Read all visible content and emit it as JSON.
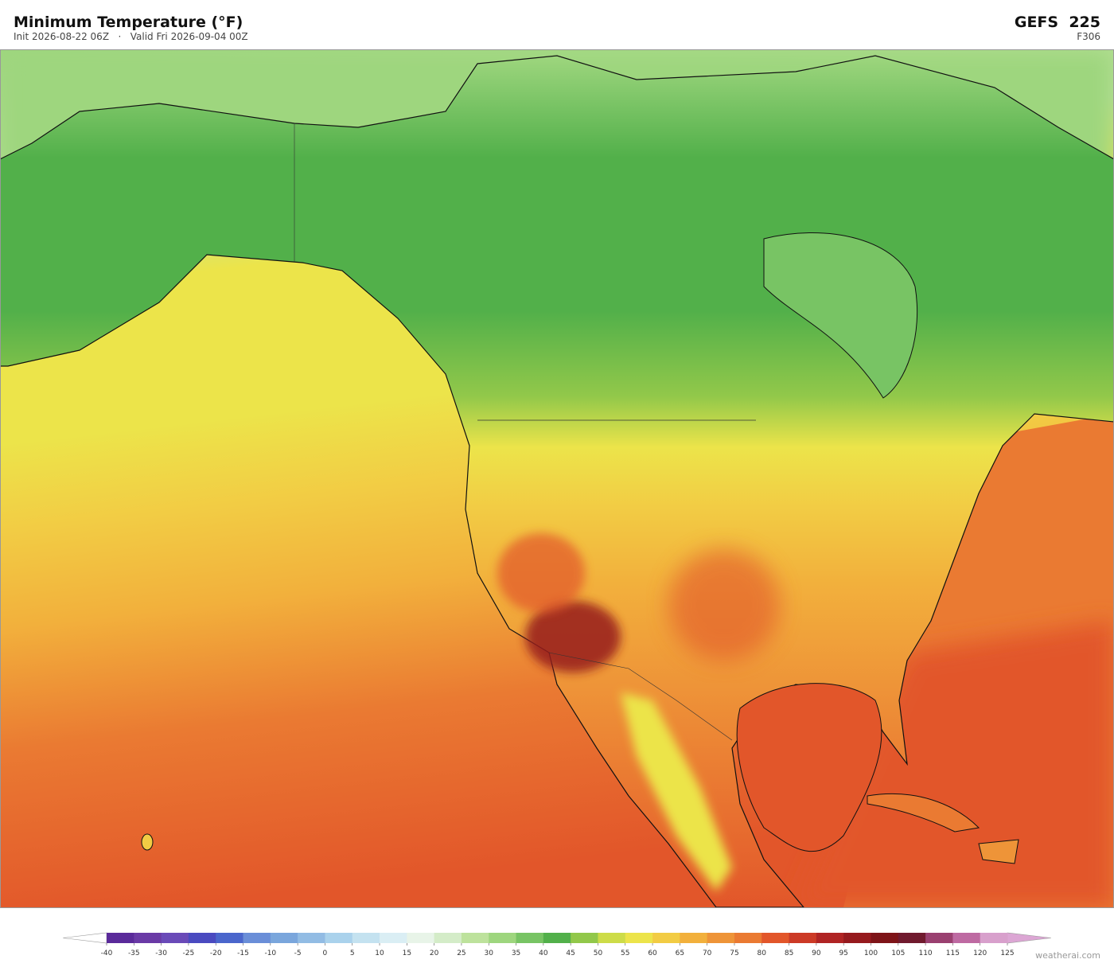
{
  "header": {
    "title": "Minimum Temperature  (°F)",
    "subtitle": "Init 2026-08-22 06Z   ·   Valid Fri 2026-09-04 00Z",
    "model": "GEFS  225",
    "forecast_hour": "F306"
  },
  "colorbar": {
    "ticks": [
      -40,
      -35,
      -30,
      -25,
      -20,
      -15,
      -10,
      -5,
      0,
      5,
      10,
      15,
      20,
      25,
      30,
      35,
      40,
      45,
      50,
      55,
      60,
      65,
      70,
      75,
      80,
      85,
      90,
      95,
      100,
      105,
      110,
      115,
      120,
      125
    ],
    "colors": [
      "#5a2a9a",
      "#6a3aa6",
      "#6a4ab8",
      "#4a4ac0",
      "#4a66cc",
      "#6a8ed8",
      "#7aa6dc",
      "#92bce4",
      "#aad2ec",
      "#c4e2f0",
      "#daeef4",
      "#e8f4e8",
      "#d4ecc8",
      "#bde29c",
      "#9ed67e",
      "#78c464",
      "#52b04a",
      "#92c84a",
      "#cddc48",
      "#ece44a",
      "#f2cc44",
      "#f2b03c",
      "#ee9438",
      "#ea7a32",
      "#e2562a",
      "#cc3a26",
      "#b02424",
      "#961a1e",
      "#7e1418",
      "#701a2e",
      "#9a4070",
      "#be6aa2",
      "#d8a0cc"
    ],
    "under_color": "#ffffff",
    "over_color": "#dca6d4"
  },
  "watermark": "weatherai.com"
}
